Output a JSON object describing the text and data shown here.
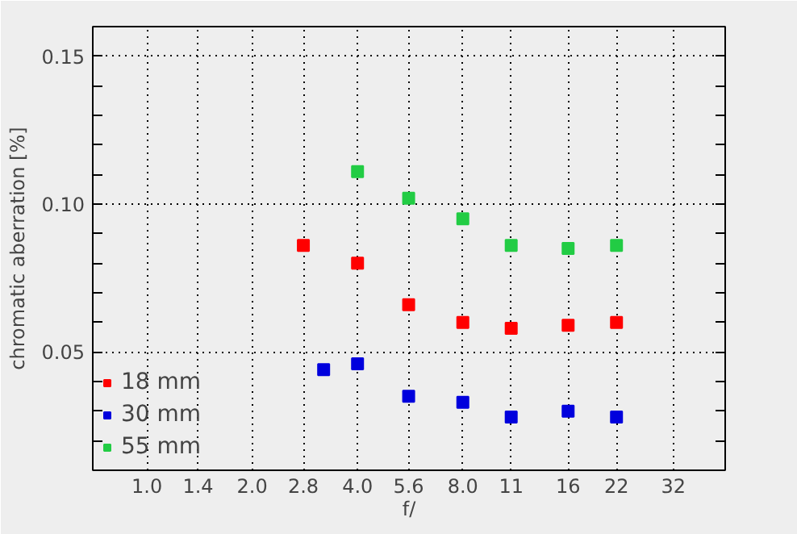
{
  "chart_data": {
    "type": "scatter",
    "xlabel": "f/",
    "ylabel": "chromatic aberration [%]",
    "log": "x",
    "marker": "square",
    "grid": true,
    "legend": "bottom left",
    "xlim": [
      0.7,
      45
    ],
    "xticks": [
      {
        "value": 1,
        "label": "1.0"
      },
      1.4,
      {
        "value": 2,
        "label": "2.0"
      },
      2.8,
      {
        "value": 4,
        "label": "4.0"
      },
      5.6,
      {
        "value": 8,
        "label": "8.0"
      },
      11,
      16,
      22,
      32
    ],
    "ylim": [
      0.01,
      0.16
    ],
    "yticks": [
      {
        "value": 0.02,
        "label": null
      },
      {
        "value": 0.03,
        "label": null
      },
      {
        "value": 0.04,
        "label": null
      },
      {
        "value": 0.05,
        "label": "0.05"
      },
      {
        "value": 0.06,
        "label": null
      },
      {
        "value": 0.07,
        "label": null
      },
      {
        "value": 0.08,
        "label": null
      },
      {
        "value": 0.09,
        "label": null
      },
      {
        "value": 0.1,
        "label": "0.10"
      },
      {
        "value": 0.11,
        "label": null
      },
      {
        "value": 0.12,
        "label": null
      },
      {
        "value": 0.13,
        "label": null
      },
      {
        "value": 0.14,
        "label": null
      },
      {
        "value": 0.15,
        "label": "0.15"
      }
    ],
    "series": [
      {
        "name": "18 mm",
        "color": "#ff0000",
        "x": [
          2.8,
          4,
          5.6,
          8,
          11,
          16,
          22
        ],
        "values": [
          0.086,
          0.08,
          0.066,
          0.06,
          0.058,
          0.059,
          0.06
        ]
      },
      {
        "name": "30 mm",
        "color": "#0000dd",
        "x": [
          3.2,
          4,
          5.6,
          8,
          11,
          16,
          22
        ],
        "values": [
          0.044,
          0.046,
          0.035,
          0.033,
          0.028,
          0.03,
          0.028
        ]
      },
      {
        "name": "55 mm",
        "color": "#22cc44",
        "x": [
          4,
          5.6,
          8,
          11,
          16,
          22
        ],
        "values": [
          0.111,
          0.102,
          0.095,
          0.086,
          0.085,
          0.086
        ]
      }
    ]
  }
}
